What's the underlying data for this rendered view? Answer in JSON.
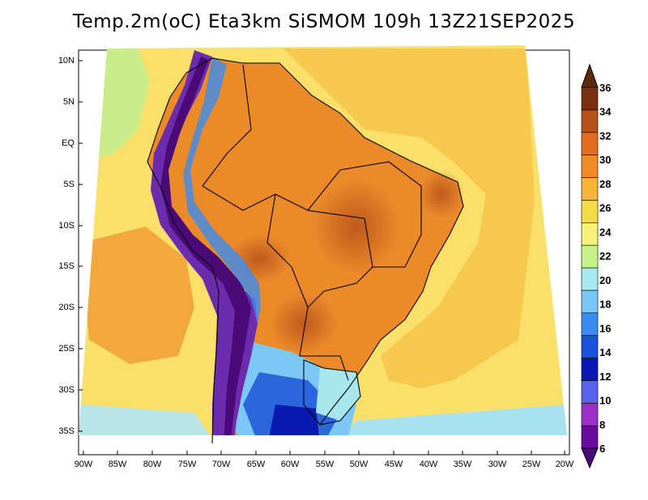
{
  "title": "Temp.2m(oC)  Eta3km  SiSMOM  109h  13Z21SEP2025",
  "lat_labels": [
    "10N",
    "5N",
    "EQ",
    "5S",
    "10S",
    "15S",
    "20S",
    "25S",
    "30S",
    "35S"
  ],
  "lon_labels": [
    "90W",
    "85W",
    "80W",
    "75W",
    "70W",
    "65W",
    "60W",
    "55W",
    "50W",
    "45W",
    "40W",
    "35W",
    "30W",
    "25W",
    "20W"
  ],
  "colorbar": {
    "labels": [
      "6",
      "8",
      "10",
      "12",
      "14",
      "16",
      "18",
      "20",
      "22",
      "24",
      "26",
      "28",
      "30",
      "32",
      "34",
      "36"
    ],
    "colors": [
      "#6a0aa0",
      "#9b31c8",
      "#5a62f0",
      "#0a18b4",
      "#1a52dc",
      "#3a8cf0",
      "#78c6f6",
      "#a8e8f0",
      "#c6f28a",
      "#f8f27a",
      "#f6dc48",
      "#f6b438",
      "#f08c26",
      "#e46c1e",
      "#b8501a",
      "#7a300e"
    ],
    "arrow_low": "#4a0a78",
    "arrow_high": "#5a2a0c"
  },
  "colors": {
    "ocean_warm": "#f6c648",
    "ocean_mid": "#f8e070",
    "land_hot": "#ec8428",
    "land_very_hot": "#c85a1c",
    "andes_cold": "#6a2aa8"
  }
}
